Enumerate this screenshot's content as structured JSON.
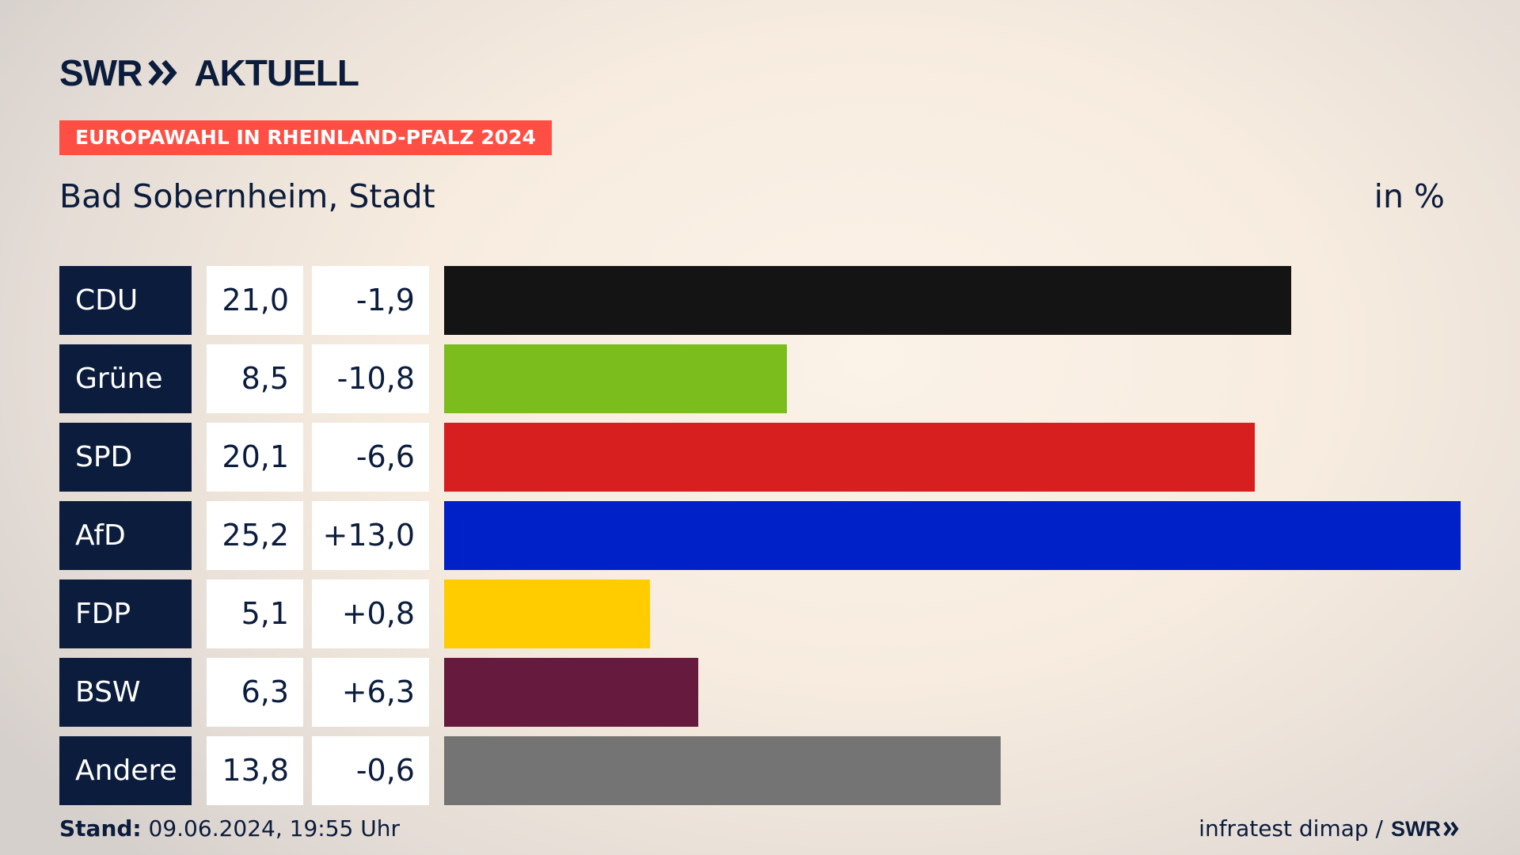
{
  "header": {
    "logo_left": "SWR",
    "logo_right": "AKTUELL",
    "tag": "EUROPAWAHL IN RHEINLAND-PFALZ 2024",
    "subtitle": "Bad Sobernheim, Stadt",
    "unit": "in %"
  },
  "chart_data": {
    "type": "bar",
    "orientation": "horizontal",
    "title": "Bad Sobernheim, Stadt",
    "unit": "in %",
    "categories": [
      "CDU",
      "Grüne",
      "SPD",
      "AfD",
      "FDP",
      "BSW",
      "Andere"
    ],
    "values": [
      21.0,
      8.5,
      20.1,
      25.2,
      5.1,
      6.3,
      13.8
    ],
    "value_labels": [
      "21,0",
      "8,5",
      "20,1",
      "25,2",
      "5,1",
      "6,3",
      "13,8"
    ],
    "diff_labels": [
      "-1,9",
      "-10,8",
      "-6,6",
      "+13,0",
      "+0,8",
      "+6,3",
      "-0,6"
    ],
    "colors": [
      "#141414",
      "#7abd1d",
      "#d71f1f",
      "#0021c8",
      "#ffcc00",
      "#651a3e",
      "#747474"
    ],
    "xlim": [
      0,
      25.2
    ]
  },
  "footer": {
    "stand_label": "Stand:",
    "stand_value": "09.06.2024, 19:55 Uhr",
    "source": "infratest dimap /",
    "source_logo": "SWR"
  }
}
